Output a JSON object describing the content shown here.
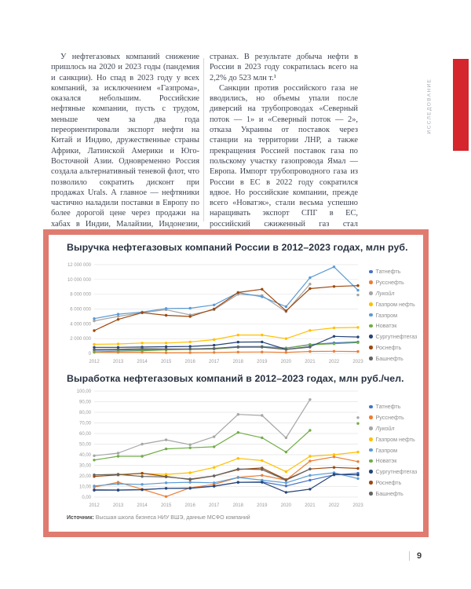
{
  "text_columns": {
    "left_paragraphs": [
      "У нефтегазовых компаний снижение пришлось на 2020 и 2023 годы (пандемия и санкции). Но спад в 2023 году у всех компаний, за исключением «Газпрома», оказался небольшим. Российские нефтяные компании, пусть с трудом, меньше чем за два года переориентировали экспорт нефти на Китай и Индию, дружественные страны Африки, Латинской Америки и Юго-Восточной Азии. Одновременно Россия создала альтернативный теневой флот, что позволило сократить дисконт при продажах Urals. А главное — нефтяники частично наладили поставки в Европу по более дорогой цене через продажи на хабах в Индии, Малайзии, Индонезии, Алжире и других"
    ],
    "right_paragraphs": [
      "странах. В результате добыча нефти в России в 2023 году сократилась всего на 2,2% до 523 млн т.¹",
      "Санкции против российского газа не вводились, но объемы упали после диверсий на трубопроводах «Северный поток — 1» и «Северный поток — 2», отказа Украины от поставок через станции на территории ЛНР, а также прекращения Россией поставок газа по польскому участку газопровода Ямал — Европа. Импорт трубопроводного газа из России в ЕС в 2022 году сократился вдвое. Но российские компании, прежде всего «Новатэк», стали весьма успешно наращивать экспорт СПГ в ЕС, российский сжиженный газ стал вытеснять в Европе СПГ из США."
    ]
  },
  "sidebar": {
    "label": "ИССЛЕДОВАНИЕ",
    "bar_color": "#d4262c"
  },
  "panel": {
    "border_color": "#e07b70",
    "source_label": "Источник:",
    "source_text": " Высшая школа бизнеса НИУ ВШЭ, данные МСФО компаний"
  },
  "footer": {
    "page_number": "9"
  },
  "chart_data": [
    {
      "type": "line",
      "title": "Выручка нефтегазовых компаний России в 2012–2023 годах, млн руб.",
      "categories": [
        "2012",
        "2013",
        "2014",
        "2015",
        "2016",
        "2017",
        "2018",
        "2019",
        "2020",
        "2021",
        "2022",
        "2023"
      ],
      "ylim": [
        0,
        12000000
      ],
      "ytick_labels": [
        "0",
        "2 000 000",
        "4 000 000",
        "6 000 000",
        "8 000 000",
        "10 000 000",
        "12 000 000"
      ],
      "grid": true,
      "legend_position": "right",
      "series": [
        {
          "name": "Татнефть",
          "color": "#4472C4",
          "values": [
            440000,
            455000,
            476000,
            553000,
            580000,
            681000,
            911000,
            932000,
            721000,
            1205000,
            1427000,
            1550000
          ]
        },
        {
          "name": "Русснефть",
          "color": "#ED7D31",
          "values": [
            150000,
            150000,
            145000,
            100000,
            105000,
            125000,
            180000,
            190000,
            135000,
            270000,
            290000,
            250000
          ]
        },
        {
          "name": "Лукойл",
          "color": "#A5A5A5",
          "italic": true,
          "values": [
            4400000,
            5000000,
            5500000,
            5900000,
            5200000,
            5900000,
            8000000,
            7800000,
            5640000,
            9380000,
            null,
            7900000
          ]
        },
        {
          "name": "Газпром нефть",
          "color": "#FFC000",
          "values": [
            1230000,
            1270000,
            1400000,
            1400000,
            1550000,
            1860000,
            2490000,
            2490000,
            2000000,
            3100000,
            3450000,
            3520000
          ]
        },
        {
          "name": "Газпром",
          "color": "#5B9BD5",
          "values": [
            4700000,
            5300000,
            5600000,
            6070000,
            6110000,
            6550000,
            8220000,
            7660000,
            6320000,
            10240000,
            11700000,
            8540000
          ]
        },
        {
          "name": "Новатэк",
          "color": "#70AD47",
          "values": [
            210000,
            300000,
            360000,
            475000,
            540000,
            585000,
            830000,
            860000,
            710000,
            1160000,
            1310000,
            1450000
          ]
        },
        {
          "name": "Сургутнефтегаз",
          "color": "#264478",
          "values": [
            815000,
            815000,
            865000,
            900000,
            950000,
            1100000,
            1525000,
            1550000,
            550000,
            900000,
            2300000,
            2220000
          ]
        },
        {
          "name": "Роснефть",
          "color": "#9E480E",
          "values": [
            3080000,
            4600000,
            5500000,
            5150000,
            4990000,
            6010000,
            8240000,
            8680000,
            5760000,
            8760000,
            9050000,
            9160000
          ]
        },
        {
          "name": "Башнефть",
          "color": "#636363",
          "values": [
            530000,
            560000,
            640000,
            610000,
            590000,
            670000,
            860000,
            850000,
            530000,
            850000,
            null,
            null
          ]
        }
      ]
    },
    {
      "type": "line",
      "title": "Выработка нефтегазовых компаний в 2012–2023 годах, млн руб./чел.",
      "categories": [
        "2012",
        "2013",
        "2014",
        "2015",
        "2016",
        "2017",
        "2018",
        "2019",
        "2020",
        "2021",
        "2022",
        "2023"
      ],
      "ylim": [
        0,
        100
      ],
      "ytick_labels": [
        "0,00",
        "10,00",
        "20,00",
        "30,00",
        "40,00",
        "50,00",
        "60,00",
        "70,00",
        "80,00",
        "90,00",
        "100,00"
      ],
      "grid": true,
      "legend_position": "right",
      "series": [
        {
          "name": "Татнефть",
          "color": "#4472C4",
          "values": [
            7,
            6.8,
            7.2,
            8.2,
            8.6,
            10.4,
            13.9,
            14.4,
            10.5,
            16,
            21,
            22.5
          ]
        },
        {
          "name": "Русснефть",
          "color": "#ED7D31",
          "values": [
            9.5,
            14,
            7.5,
            0.5,
            8.8,
            12,
            18.5,
            20.5,
            16,
            34,
            38,
            33.5
          ]
        },
        {
          "name": "Лукойл",
          "color": "#A5A5A5",
          "italic": true,
          "values": [
            39,
            41.5,
            50,
            54,
            49.5,
            57,
            78,
            77,
            56,
            92,
            null,
            75
          ]
        },
        {
          "name": "Газпром нефть",
          "color": "#FFC000",
          "values": [
            21,
            21.5,
            22.2,
            21.5,
            23,
            28,
            36.5,
            34.5,
            24,
            38.5,
            40,
            42.5
          ]
        },
        {
          "name": "Газпром",
          "color": "#5B9BD5",
          "values": [
            10.5,
            12.5,
            12,
            13.5,
            14,
            13.5,
            18.5,
            16,
            13.5,
            20.5,
            23,
            17.5
          ]
        },
        {
          "name": "Новатэк",
          "color": "#70AD47",
          "values": [
            35,
            38.5,
            38.5,
            45.5,
            46.5,
            47.5,
            61,
            56,
            42.5,
            63,
            null,
            69.5
          ]
        },
        {
          "name": "Сургутнефтегаз",
          "color": "#264478",
          "values": [
            6.5,
            6.5,
            7,
            8.3,
            8.3,
            10.3,
            14,
            14,
            4.5,
            7.5,
            21.5,
            21
          ]
        },
        {
          "name": "Роснефть",
          "color": "#9E480E",
          "values": [
            19.5,
            21,
            22.5,
            19.5,
            16.5,
            20,
            26,
            27.5,
            16.5,
            26.5,
            28,
            27
          ]
        },
        {
          "name": "Башнефть",
          "color": "#636363",
          "values": [
            21,
            21.5,
            19.5,
            19,
            17,
            20,
            26.5,
            26,
            16,
            26.5,
            null,
            null
          ]
        }
      ]
    }
  ]
}
